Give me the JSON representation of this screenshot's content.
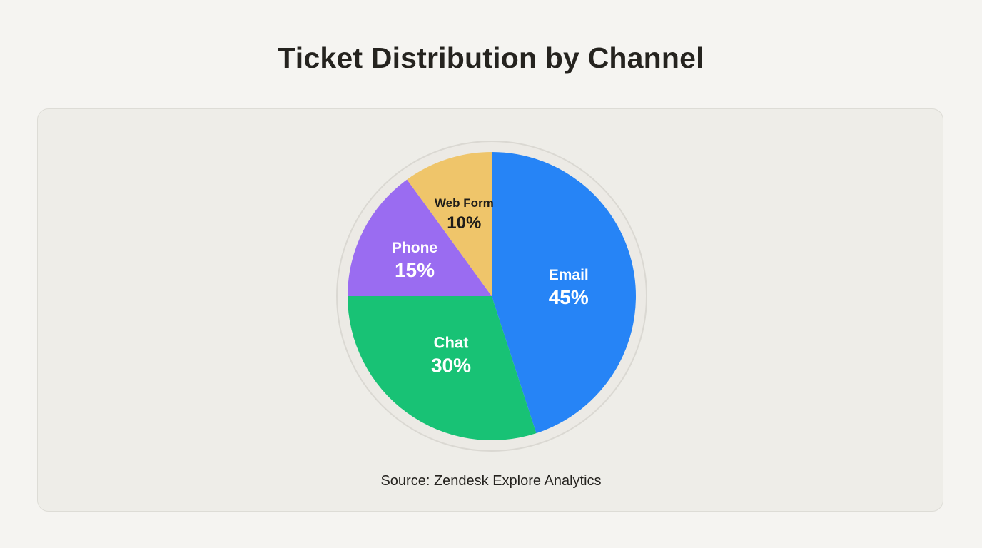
{
  "chart_data": {
    "type": "pie",
    "title": "Ticket Distribution by Channel",
    "source": "Source: Zendesk Explore Analytics",
    "slices": [
      {
        "label": "Email",
        "value": 45,
        "value_label": "45%",
        "color": "#2684f6",
        "text_color": "#ffffff"
      },
      {
        "label": "Chat",
        "value": 30,
        "value_label": "30%",
        "color": "#18c275",
        "text_color": "#ffffff"
      },
      {
        "label": "Phone",
        "value": 15,
        "value_label": "15%",
        "color": "#9a6cf1",
        "text_color": "#ffffff"
      },
      {
        "label": "Web Form",
        "value": 10,
        "value_label": "10%",
        "color": "#efc56a",
        "text_color": "#1f1d1a"
      }
    ]
  }
}
